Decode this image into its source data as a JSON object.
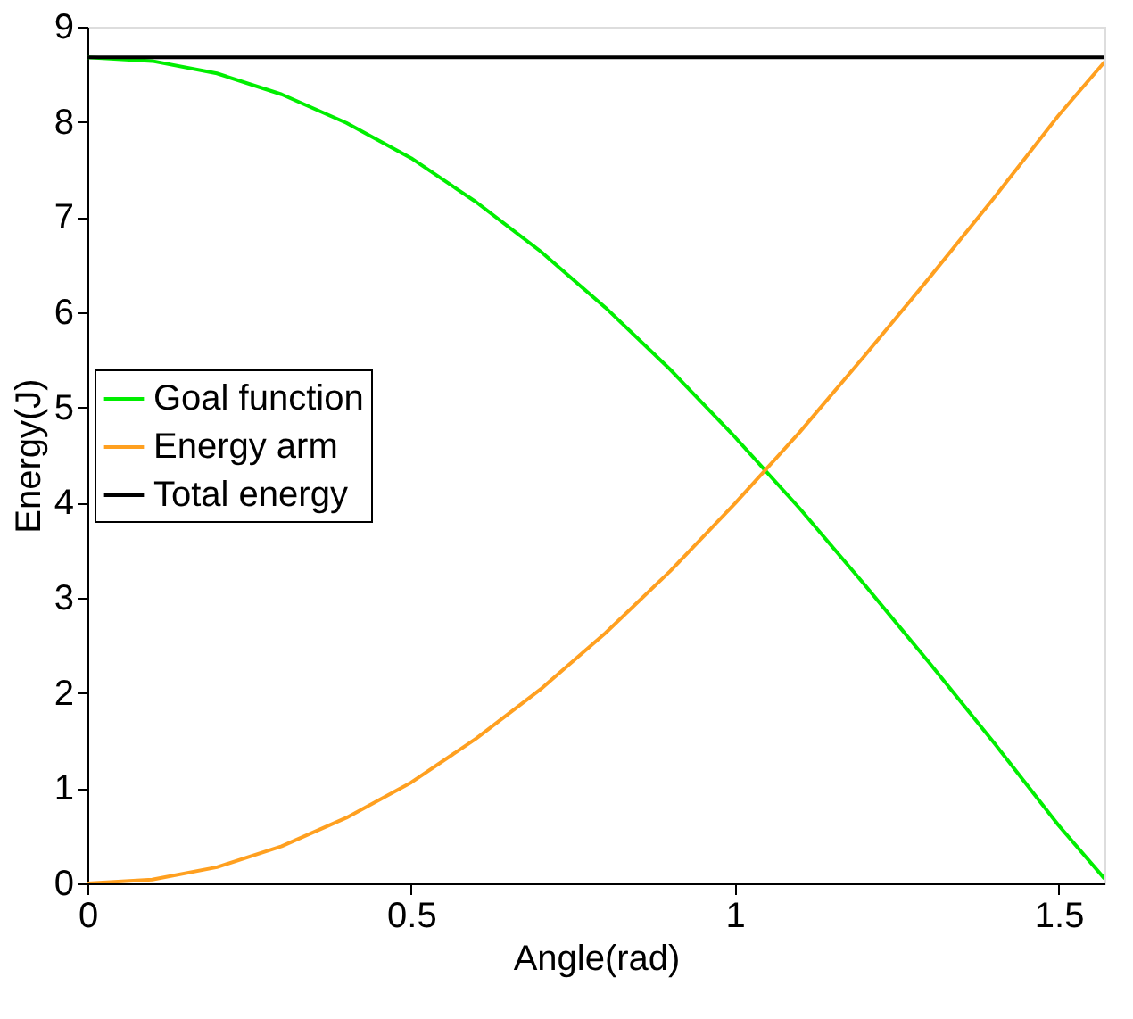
{
  "chart_data": {
    "type": "line",
    "xlabel": "Angle(rad)",
    "ylabel": "Energy(J)",
    "x": [
      0,
      0.1,
      0.2,
      0.3,
      0.4,
      0.5,
      0.6,
      0.7,
      0.8,
      0.9,
      1.0,
      1.1,
      1.2,
      1.3,
      1.4,
      1.5,
      1.5708
    ],
    "series": [
      {
        "name": "Goal function",
        "color": "#00ee00",
        "values": [
          8.68,
          8.64,
          8.51,
          8.29,
          7.99,
          7.62,
          7.16,
          6.64,
          6.05,
          5.4,
          4.69,
          3.94,
          3.14,
          2.32,
          1.48,
          0.61,
          0.05
        ]
      },
      {
        "name": "Energy arm",
        "color": "#ffa020",
        "values": [
          0,
          0.04,
          0.17,
          0.39,
          0.69,
          1.06,
          1.52,
          2.04,
          2.63,
          3.28,
          3.99,
          4.74,
          5.54,
          6.36,
          7.2,
          8.07,
          8.63
        ]
      },
      {
        "name": "Total energy",
        "color": "#000000",
        "values": [
          8.68,
          8.68,
          8.68,
          8.68,
          8.68,
          8.68,
          8.68,
          8.68,
          8.68,
          8.68,
          8.68,
          8.68,
          8.68,
          8.68,
          8.68,
          8.68,
          8.68
        ]
      }
    ],
    "xlim": [
      0,
      1.5708
    ],
    "xticks": [
      0,
      0.5,
      1,
      1.5
    ],
    "ylim": [
      0,
      9
    ],
    "yticks": [
      0,
      1,
      2,
      3,
      4,
      5,
      6,
      7,
      8,
      9
    ],
    "grid": false,
    "legend": "left",
    "marker": "none",
    "line_style": "solid"
  }
}
